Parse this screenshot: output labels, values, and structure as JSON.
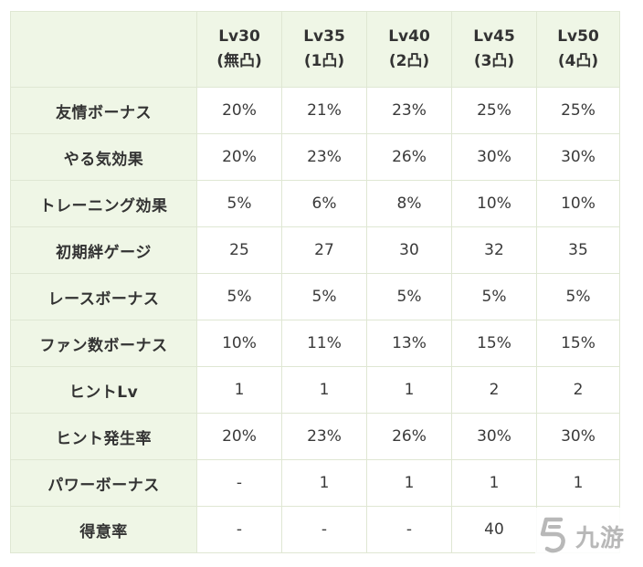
{
  "table": {
    "columns": [
      {
        "level": "Lv30",
        "limit": "(無凸)"
      },
      {
        "level": "Lv35",
        "limit": "(1凸)"
      },
      {
        "level": "Lv40",
        "limit": "(2凸)"
      },
      {
        "level": "Lv45",
        "limit": "(3凸)"
      },
      {
        "level": "Lv50",
        "limit": "(4凸)"
      }
    ],
    "rows": [
      {
        "label": "友情ボーナス",
        "values": [
          "20%",
          "21%",
          "23%",
          "25%",
          "25%"
        ]
      },
      {
        "label": "やる気効果",
        "values": [
          "20%",
          "23%",
          "26%",
          "30%",
          "30%"
        ]
      },
      {
        "label": "トレーニング効果",
        "values": [
          "5%",
          "6%",
          "8%",
          "10%",
          "10%"
        ]
      },
      {
        "label": "初期絆ゲージ",
        "values": [
          "25",
          "27",
          "30",
          "32",
          "35"
        ]
      },
      {
        "label": "レースボーナス",
        "values": [
          "5%",
          "5%",
          "5%",
          "5%",
          "5%"
        ]
      },
      {
        "label": "ファン数ボーナス",
        "values": [
          "10%",
          "11%",
          "13%",
          "15%",
          "15%"
        ]
      },
      {
        "label": "ヒントLv",
        "values": [
          "1",
          "1",
          "1",
          "2",
          "2"
        ]
      },
      {
        "label": "ヒント発生率",
        "values": [
          "20%",
          "23%",
          "26%",
          "30%",
          "30%"
        ]
      },
      {
        "label": "パワーボーナス",
        "values": [
          "-",
          "1",
          "1",
          "1",
          "1"
        ]
      },
      {
        "label": "得意率",
        "values": [
          "-",
          "-",
          "-",
          "40",
          ""
        ]
      }
    ]
  },
  "watermark": {
    "text": "九游",
    "icon": "jiuyou-logo-icon"
  }
}
